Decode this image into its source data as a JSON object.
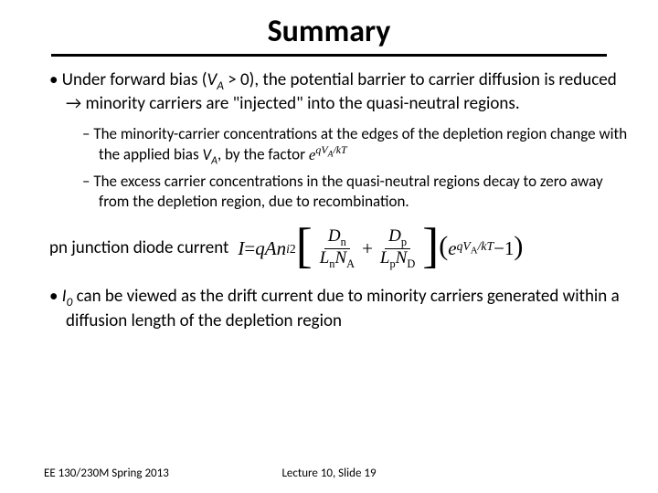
{
  "title": "Summary",
  "bullet1_a": "Under forward bias (",
  "bullet1_var": "V",
  "bullet1_sub": "A",
  "bullet1_b": " > 0), the potential barrier to carrier diffusion is reduced → minority carriers are \"injected\" into the quasi-neutral regions.",
  "sub1_a": "The minority-carrier concentrations at the edges of the depletion region change with the applied bias ",
  "sub1_var": "V",
  "sub1_sub": "A",
  "sub1_b": ", by the factor ",
  "exp_e": "e",
  "exp_sup": "qV",
  "exp_sup_sub": "A",
  "exp_sup2": "/kT",
  "sub2": "The excess carrier concentrations in the quasi-neutral regions decay to zero away from the depletion region, due to recombination.",
  "line3": "pn junction diode current",
  "eq": {
    "I": "I",
    "eq": " = ",
    "qAn": "qAn",
    "i": "i",
    "two": "2",
    "Dn": "D",
    "Dn_sub": "n",
    "Ln": "L",
    "Ln_sub": "n",
    "NA": "N",
    "NA_sub": "A",
    "Dp": "D",
    "Dp_sub": "p",
    "Lp": "L",
    "Lp_sub": "p",
    "ND": "N",
    "ND_sub": "D",
    "plus": " + ",
    "e": "e",
    "exp_q": "qV",
    "exp_A": "A",
    "exp_kT": "/kT",
    "minus1": " −1"
  },
  "bullet4_a": "",
  "bullet4_var": "I",
  "bullet4_sub": "0",
  "bullet4_b": " can be viewed as the drift current due to minority carriers generated within a diffusion length of the depletion region",
  "footer_left": "EE 130/230M Spring 2013",
  "footer_center": "Lecture 10, Slide 19"
}
